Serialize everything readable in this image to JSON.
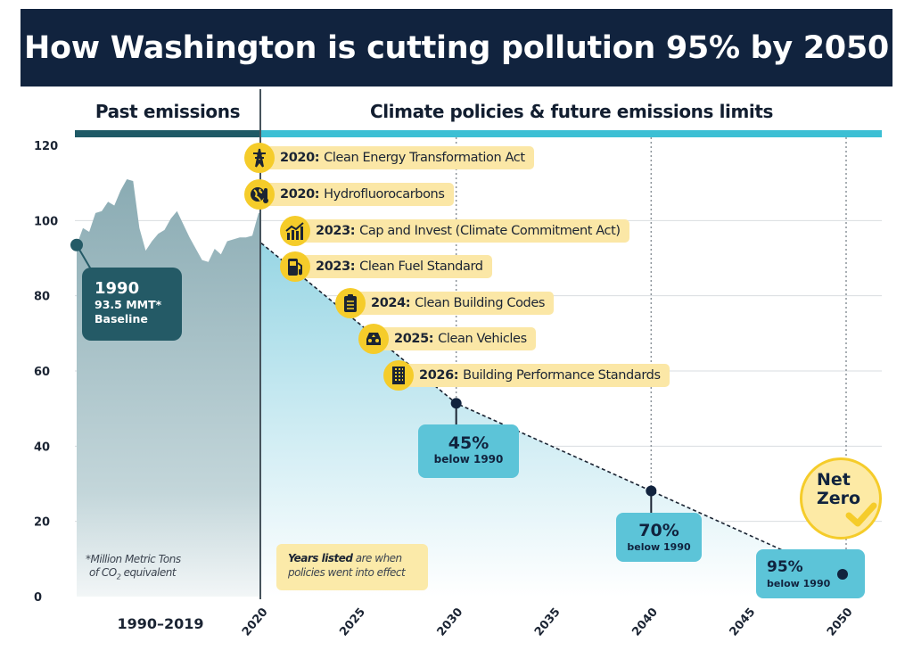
{
  "title": "How Washington is cutting pollution 95% by 2050",
  "sections": {
    "past": "Past emissions",
    "future": "Climate policies & future emissions limits"
  },
  "colors": {
    "title_bg": "#11233e",
    "past_band": "#1f5a66",
    "future_band": "#3cbfd4",
    "history_area": "#8fb0b8",
    "projection_area": "#a9dde8",
    "policy_pill": "#fbe7a6",
    "policy_icon": "#f5cc2a",
    "callout": "#5cc4d8",
    "baseline_box": "#245a66"
  },
  "baseline": {
    "year": "1990",
    "value": "93.5 MMT*",
    "label": "Baseline"
  },
  "policies": [
    {
      "year": "2020:",
      "name": "Clean Energy Transformation Act",
      "icon": "transmission-tower-icon"
    },
    {
      "year": "2020:",
      "name": "Hydrofluorocarbons",
      "icon": "globe-thermometer-icon"
    },
    {
      "year": "2023:",
      "name": "Cap and Invest (Climate Commitment Act)",
      "icon": "bar-chart-growth-icon"
    },
    {
      "year": "2023:",
      "name": "Clean Fuel Standard",
      "icon": "fuel-pump-icon"
    },
    {
      "year": "2024:",
      "name": "Clean Building Codes",
      "icon": "clipboard-icon"
    },
    {
      "year": "2025:",
      "name": "Clean Vehicles",
      "icon": "car-icon"
    },
    {
      "year": "2026:",
      "name": "Building Performance Standards",
      "icon": "building-icon"
    }
  ],
  "targets": [
    {
      "pct": "45%",
      "sub": "below 1990"
    },
    {
      "pct": "70%",
      "sub": "below 1990"
    },
    {
      "pct": "95%",
      "sub": "below 1990"
    }
  ],
  "net_zero": {
    "line1": "Net",
    "line2": "Zero"
  },
  "notes": {
    "mmt_line1": "*Million Metric Tons",
    "mmt_line2_a": "of CO",
    "mmt_line2_sub": "2",
    "mmt_line2_b": " equivalent",
    "years_bold": "Years listed",
    "years_rest1": " are when",
    "years_rest2": "policies went into effect"
  },
  "period_label": "1990–2019",
  "chart_data": {
    "type": "area",
    "title": "How Washington is cutting pollution 95% by 2050",
    "ylabel": "Million Metric Tons of CO2 equivalent",
    "xlabel": "",
    "ylim": [
      0,
      120
    ],
    "yticks": [
      "0",
      "20",
      "40",
      "60",
      "80",
      "100",
      "120"
    ],
    "xticks": [
      "2020",
      "2025",
      "2030",
      "2035",
      "2040",
      "2045",
      "2050"
    ],
    "x_range": [
      2020,
      2050
    ],
    "grid": true,
    "series": [
      {
        "name": "Past emissions (1990–2019)",
        "x": [
          1990,
          1991,
          1992,
          1993,
          1994,
          1995,
          1996,
          1997,
          1998,
          1999,
          2000,
          2001,
          2002,
          2003,
          2004,
          2005,
          2006,
          2007,
          2008,
          2009,
          2010,
          2011,
          2012,
          2013,
          2014,
          2015,
          2016,
          2017,
          2018,
          2019
        ],
        "values": [
          93.5,
          98,
          97,
          102,
          102.5,
          105,
          104,
          108,
          111,
          110.5,
          98,
          92,
          94.5,
          96.5,
          97.5,
          100.5,
          102.5,
          99,
          95.5,
          92.5,
          89.5,
          89,
          92.5,
          91,
          94.5,
          95,
          95.5,
          95.5,
          96,
          102
        ]
      },
      {
        "name": "Emissions limits (projection)",
        "x": [
          2020,
          2030,
          2040,
          2050
        ],
        "values": [
          94,
          51.4,
          28.1,
          4.7
        ]
      }
    ],
    "annotations": [
      {
        "x": 1990,
        "y": 93.5,
        "text": "1990 93.5 MMT* Baseline"
      },
      {
        "x": 2030,
        "y": 51.4,
        "text": "45% below 1990"
      },
      {
        "x": 2040,
        "y": 28.1,
        "text": "70% below 1990"
      },
      {
        "x": 2050,
        "y": 4.7,
        "text": "95% below 1990"
      },
      {
        "x": 2050,
        "y": 18,
        "text": "Net Zero"
      }
    ]
  }
}
